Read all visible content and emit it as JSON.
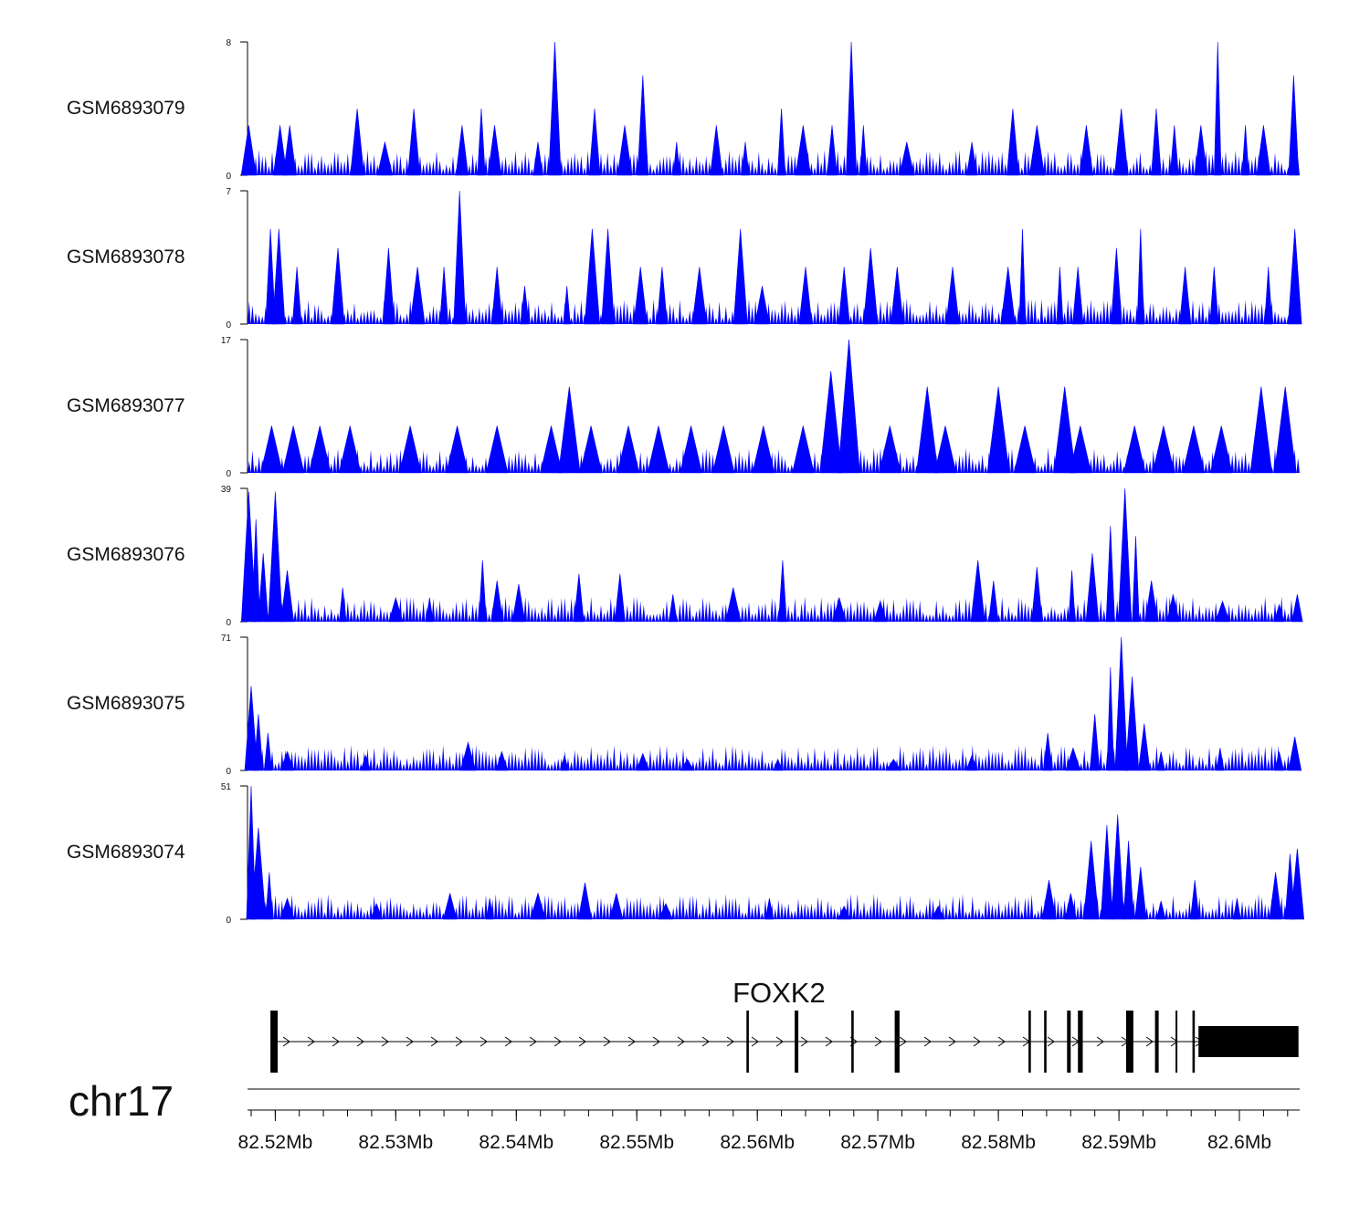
{
  "chart_data": {
    "type": "area",
    "title": "",
    "chromosome": "chr17",
    "xlabel": "",
    "xlim": [
      82.5177,
      82.605
    ],
    "x_ticks": [
      82.52,
      82.53,
      82.54,
      82.55,
      82.56,
      82.57,
      82.58,
      82.59,
      82.6
    ],
    "x_tick_labels": [
      "82.52Mb",
      "82.53Mb",
      "82.54Mb",
      "82.55Mb",
      "82.56Mb",
      "82.57Mb",
      "82.58Mb",
      "82.59Mb",
      "82.6Mb"
    ],
    "fill_color": "#0000ff",
    "series": [
      {
        "name": "GSM6893079",
        "ymax": 8,
        "ytick_labels": [
          "0",
          "8"
        ],
        "peaks": [
          [
            82.5178,
            3
          ],
          [
            82.5204,
            3
          ],
          [
            82.5212,
            3
          ],
          [
            82.5268,
            4
          ],
          [
            82.5291,
            2
          ],
          [
            82.5315,
            4
          ],
          [
            82.5355,
            3
          ],
          [
            82.5371,
            4
          ],
          [
            82.5382,
            3
          ],
          [
            82.5418,
            2
          ],
          [
            82.5432,
            8
          ],
          [
            82.5465,
            4
          ],
          [
            82.549,
            3
          ],
          [
            82.5505,
            6
          ],
          [
            82.5533,
            2
          ],
          [
            82.5566,
            3
          ],
          [
            82.559,
            2
          ],
          [
            82.562,
            4
          ],
          [
            82.5638,
            3
          ],
          [
            82.5662,
            3
          ],
          [
            82.5678,
            8
          ],
          [
            82.5688,
            3
          ],
          [
            82.5724,
            2
          ],
          [
            82.5778,
            2
          ],
          [
            82.5812,
            4
          ],
          [
            82.5832,
            3
          ],
          [
            82.5873,
            3
          ],
          [
            82.5902,
            4
          ],
          [
            82.5931,
            4
          ],
          [
            82.5946,
            3
          ],
          [
            82.5968,
            3
          ],
          [
            82.5982,
            8
          ],
          [
            82.6005,
            3
          ],
          [
            82.602,
            3
          ],
          [
            82.6045,
            6
          ]
        ]
      },
      {
        "name": "GSM6893078",
        "ymax": 7,
        "ytick_labels": [
          "0",
          "7"
        ],
        "peaks": [
          [
            82.5196,
            5
          ],
          [
            82.5203,
            5
          ],
          [
            82.5218,
            3
          ],
          [
            82.5252,
            4
          ],
          [
            82.5294,
            4
          ],
          [
            82.5318,
            3
          ],
          [
            82.534,
            3
          ],
          [
            82.5353,
            7
          ],
          [
            82.5384,
            3
          ],
          [
            82.5407,
            2
          ],
          [
            82.5442,
            2
          ],
          [
            82.5463,
            5
          ],
          [
            82.5476,
            5
          ],
          [
            82.5503,
            3
          ],
          [
            82.5521,
            3
          ],
          [
            82.5552,
            3
          ],
          [
            82.5586,
            5
          ],
          [
            82.5604,
            2
          ],
          [
            82.564,
            3
          ],
          [
            82.5672,
            3
          ],
          [
            82.5694,
            4
          ],
          [
            82.5716,
            3
          ],
          [
            82.5762,
            3
          ],
          [
            82.5808,
            3
          ],
          [
            82.582,
            5
          ],
          [
            82.5851,
            3
          ],
          [
            82.5866,
            3
          ],
          [
            82.5898,
            4
          ],
          [
            82.5918,
            5
          ],
          [
            82.5955,
            3
          ],
          [
            82.5979,
            3
          ],
          [
            82.6024,
            3
          ],
          [
            82.6046,
            5
          ]
        ]
      },
      {
        "name": "GSM6893077",
        "ymax": 17,
        "ytick_labels": [
          "0",
          "17"
        ],
        "peaks": [
          [
            82.5197,
            6
          ],
          [
            82.5215,
            6
          ],
          [
            82.5237,
            6
          ],
          [
            82.5262,
            6
          ],
          [
            82.5312,
            6
          ],
          [
            82.5351,
            6
          ],
          [
            82.5384,
            6
          ],
          [
            82.5429,
            6
          ],
          [
            82.5444,
            11
          ],
          [
            82.5462,
            6
          ],
          [
            82.5493,
            6
          ],
          [
            82.5518,
            6
          ],
          [
            82.5545,
            6
          ],
          [
            82.5572,
            6
          ],
          [
            82.5605,
            6
          ],
          [
            82.5638,
            6
          ],
          [
            82.5661,
            13
          ],
          [
            82.5676,
            17
          ],
          [
            82.571,
            6
          ],
          [
            82.5741,
            11
          ],
          [
            82.5756,
            6
          ],
          [
            82.58,
            11
          ],
          [
            82.5822,
            6
          ],
          [
            82.5855,
            11
          ],
          [
            82.5868,
            6
          ],
          [
            82.5913,
            6
          ],
          [
            82.5937,
            6
          ],
          [
            82.5962,
            6
          ],
          [
            82.5985,
            6
          ],
          [
            82.6018,
            11
          ],
          [
            82.6038,
            11
          ]
        ]
      },
      {
        "name": "GSM6893076",
        "ymax": 39,
        "ytick_labels": [
          "0",
          "39"
        ],
        "peaks": [
          [
            82.5178,
            38
          ],
          [
            82.5184,
            30
          ],
          [
            82.519,
            20
          ],
          [
            82.52,
            38
          ],
          [
            82.521,
            15
          ],
          [
            82.5256,
            10
          ],
          [
            82.53,
            7
          ],
          [
            82.5328,
            7
          ],
          [
            82.5372,
            18
          ],
          [
            82.5384,
            12
          ],
          [
            82.5402,
            11
          ],
          [
            82.5452,
            14
          ],
          [
            82.5486,
            14
          ],
          [
            82.553,
            8
          ],
          [
            82.558,
            10
          ],
          [
            82.5621,
            18
          ],
          [
            82.5668,
            7
          ],
          [
            82.5702,
            6
          ],
          [
            82.5783,
            18
          ],
          [
            82.5796,
            12
          ],
          [
            82.5832,
            16
          ],
          [
            82.5861,
            15
          ],
          [
            82.5878,
            20
          ],
          [
            82.5893,
            28
          ],
          [
            82.5905,
            39
          ],
          [
            82.5914,
            25
          ],
          [
            82.5927,
            12
          ],
          [
            82.5945,
            8
          ],
          [
            82.5986,
            6
          ],
          [
            82.6033,
            5
          ],
          [
            82.6048,
            8
          ]
        ]
      },
      {
        "name": "GSM6893075",
        "ymax": 71,
        "ytick_labels": [
          "0",
          "71"
        ],
        "peaks": [
          [
            82.518,
            45
          ],
          [
            82.5186,
            30
          ],
          [
            82.5194,
            20
          ],
          [
            82.521,
            10
          ],
          [
            82.5275,
            8
          ],
          [
            82.536,
            15
          ],
          [
            82.5388,
            10
          ],
          [
            82.544,
            8
          ],
          [
            82.5505,
            9
          ],
          [
            82.5542,
            6
          ],
          [
            82.5617,
            6
          ],
          [
            82.5713,
            6
          ],
          [
            82.5778,
            8
          ],
          [
            82.5841,
            20
          ],
          [
            82.5862,
            12
          ],
          [
            82.588,
            30
          ],
          [
            82.5893,
            55
          ],
          [
            82.5902,
            71
          ],
          [
            82.5911,
            50
          ],
          [
            82.5921,
            25
          ],
          [
            82.5935,
            10
          ],
          [
            82.5984,
            12
          ],
          [
            82.6033,
            10
          ],
          [
            82.6046,
            18
          ]
        ]
      },
      {
        "name": "GSM6893074",
        "ymax": 51,
        "ytick_labels": [
          "0",
          "51"
        ],
        "peaks": [
          [
            82.518,
            51
          ],
          [
            82.5186,
            35
          ],
          [
            82.5195,
            18
          ],
          [
            82.521,
            8
          ],
          [
            82.5284,
            6
          ],
          [
            82.5345,
            10
          ],
          [
            82.5378,
            8
          ],
          [
            82.5418,
            10
          ],
          [
            82.5457,
            14
          ],
          [
            82.5483,
            10
          ],
          [
            82.5524,
            6
          ],
          [
            82.561,
            8
          ],
          [
            82.5672,
            5
          ],
          [
            82.575,
            5
          ],
          [
            82.5842,
            15
          ],
          [
            82.586,
            10
          ],
          [
            82.5877,
            30
          ],
          [
            82.589,
            36
          ],
          [
            82.5899,
            40
          ],
          [
            82.5908,
            30
          ],
          [
            82.5918,
            20
          ],
          [
            82.5935,
            7
          ],
          [
            82.5963,
            15
          ],
          [
            82.5998,
            8
          ],
          [
            82.603,
            18
          ],
          [
            82.6042,
            25
          ],
          [
            82.6048,
            27
          ]
        ]
      }
    ],
    "gene": {
      "name": "FOXK2",
      "strand": "+",
      "start": 82.5196,
      "end": 82.6049,
      "exons": [
        [
          82.5196,
          82.5202
        ],
        [
          82.5591,
          82.5593
        ],
        [
          82.5631,
          82.5634
        ],
        [
          82.5678,
          82.568
        ],
        [
          82.5714,
          82.5718
        ],
        [
          82.5825,
          82.5827
        ],
        [
          82.5838,
          82.584
        ],
        [
          82.5857,
          82.586
        ],
        [
          82.5866,
          82.587
        ],
        [
          82.5906,
          82.5912
        ],
        [
          82.593,
          82.5933
        ],
        [
          82.5947,
          82.5948
        ],
        [
          82.5961,
          82.5963
        ],
        [
          82.5966,
          82.6049
        ]
      ]
    }
  }
}
